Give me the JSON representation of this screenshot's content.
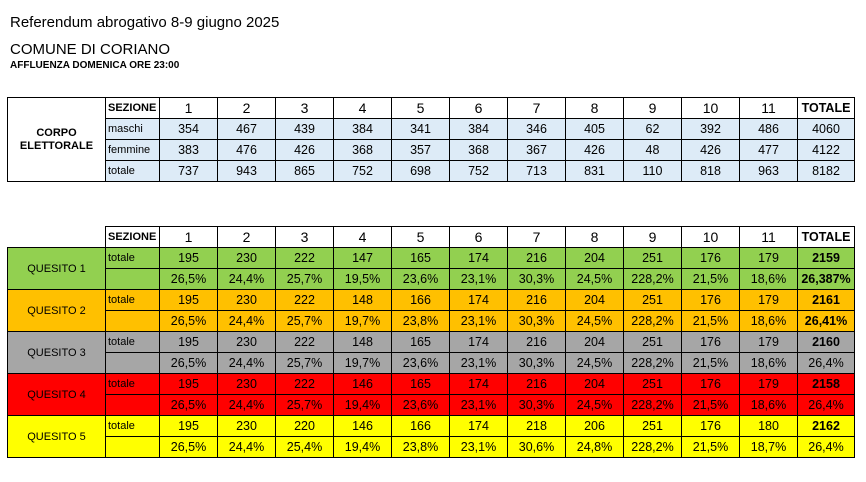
{
  "header": {
    "title": "Referendum abrogativo 8-9 giugno 2025",
    "municipality": "COMUNE DI CORIANO",
    "subtitle": "AFFLUENZA DOMENICA ORE 23:00"
  },
  "corpo": {
    "label_line1": "CORPO",
    "label_line2": "ELETTORALE",
    "sezione_label": "SEZIONE",
    "sections": [
      "1",
      "2",
      "3",
      "4",
      "5",
      "6",
      "7",
      "8",
      "9",
      "10",
      "11"
    ],
    "total_label": "TOTALE",
    "rows": [
      {
        "label": "maschi",
        "values": [
          "354",
          "467",
          "439",
          "384",
          "341",
          "384",
          "346",
          "405",
          "62",
          "392",
          "486"
        ],
        "total": "4060"
      },
      {
        "label": "femmine",
        "values": [
          "383",
          "476",
          "426",
          "368",
          "357",
          "368",
          "367",
          "426",
          "48",
          "426",
          "477"
        ],
        "total": "4122"
      },
      {
        "label": "totale",
        "values": [
          "737",
          "943",
          "865",
          "752",
          "698",
          "752",
          "713",
          "831",
          "110",
          "818",
          "963"
        ],
        "total": "8182"
      }
    ]
  },
  "quesiti": {
    "sezione_label": "SEZIONE",
    "sections": [
      "1",
      "2",
      "3",
      "4",
      "5",
      "6",
      "7",
      "8",
      "9",
      "10",
      "11"
    ],
    "total_label": "TOTALE",
    "colors": {
      "q1": "#92d050",
      "q2": "#ffc000",
      "q3": "#a6a6a6",
      "q4": "#ff0000",
      "q5": "#ffff00"
    },
    "items": [
      {
        "label": "QUESITO 1",
        "totale_label": "totale",
        "values": [
          "195",
          "230",
          "222",
          "147",
          "165",
          "174",
          "216",
          "204",
          "251",
          "176",
          "179"
        ],
        "total": "2159",
        "percents": [
          "26,5%",
          "24,4%",
          "25,7%",
          "19,5%",
          "23,6%",
          "23,1%",
          "30,3%",
          "24,5%",
          "228,2%",
          "21,5%",
          "18,6%"
        ],
        "total_percent": "26,387%"
      },
      {
        "label": "QUESITO 2",
        "totale_label": "totale",
        "values": [
          "195",
          "230",
          "222",
          "148",
          "166",
          "174",
          "216",
          "204",
          "251",
          "176",
          "179"
        ],
        "total": "2161",
        "percents": [
          "26,5%",
          "24,4%",
          "25,7%",
          "19,7%",
          "23,8%",
          "23,1%",
          "30,3%",
          "24,5%",
          "228,2%",
          "21,5%",
          "18,6%"
        ],
        "total_percent": "26,41%"
      },
      {
        "label": "QUESITO 3",
        "totale_label": "totale",
        "values": [
          "195",
          "230",
          "222",
          "148",
          "165",
          "174",
          "216",
          "204",
          "251",
          "176",
          "179"
        ],
        "total": "2160",
        "percents": [
          "26,5%",
          "24,4%",
          "25,7%",
          "19,7%",
          "23,6%",
          "23,1%",
          "30,3%",
          "24,5%",
          "228,2%",
          "21,5%",
          "18,6%"
        ],
        "total_percent": "26,4%"
      },
      {
        "label": "QUESITO 4",
        "totale_label": "totale",
        "values": [
          "195",
          "230",
          "222",
          "146",
          "165",
          "174",
          "216",
          "204",
          "251",
          "176",
          "179"
        ],
        "total": "2158",
        "percents": [
          "26,5%",
          "24,4%",
          "25,7%",
          "19,4%",
          "23,6%",
          "23,1%",
          "30,3%",
          "24,5%",
          "228,2%",
          "21,5%",
          "18,6%"
        ],
        "total_percent": "26,4%"
      },
      {
        "label": "QUESITO 5",
        "totale_label": "totale",
        "values": [
          "195",
          "230",
          "220",
          "146",
          "166",
          "174",
          "218",
          "206",
          "251",
          "176",
          "180"
        ],
        "total": "2162",
        "percents": [
          "26,5%",
          "24,4%",
          "25,4%",
          "19,4%",
          "23,8%",
          "23,1%",
          "30,6%",
          "24,8%",
          "228,2%",
          "21,5%",
          "18,7%"
        ],
        "total_percent": "26,4%"
      }
    ]
  }
}
